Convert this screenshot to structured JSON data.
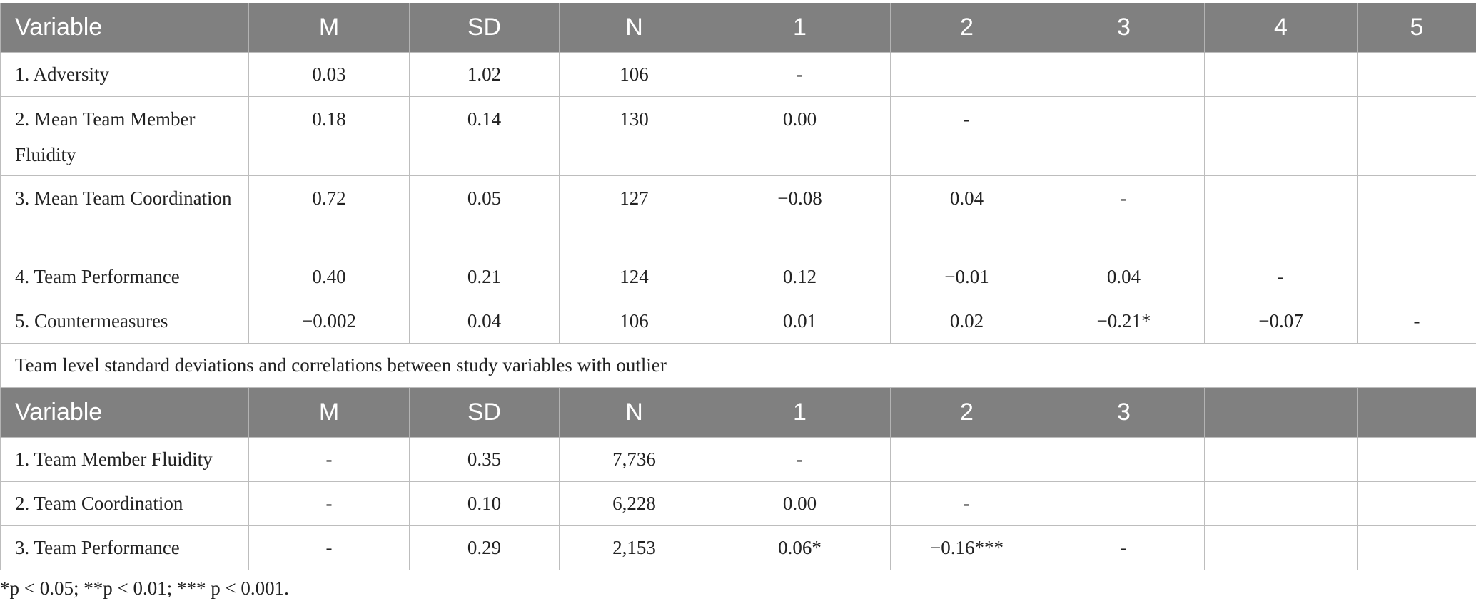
{
  "table1": {
    "header": [
      "Variable",
      "M",
      "SD",
      "N",
      "1",
      "2",
      "3",
      "4",
      "5"
    ],
    "rows": [
      [
        "1. Adversity",
        "0.03",
        "1.02",
        "106",
        "-",
        "",
        "",
        "",
        ""
      ],
      [
        "2. Mean Team Member Fluidity",
        "0.18",
        "0.14",
        "130",
        "0.00",
        "-",
        "",
        "",
        ""
      ],
      [
        "3. Mean Team Coordination",
        "0.72",
        "0.05",
        "127",
        "−0.08",
        "0.04",
        "-",
        "",
        ""
      ],
      [
        "4. Team Performance",
        "0.40",
        "0.21",
        "124",
        "0.12",
        "−0.01",
        "0.04",
        "-",
        ""
      ],
      [
        "5. Countermeasures",
        "−0.002",
        "0.04",
        "106",
        "0.01",
        "0.02",
        "−0.21*",
        "−0.07",
        "-"
      ]
    ]
  },
  "caption": "Team level standard deviations and correlations between study variables with outlier",
  "table2": {
    "header": [
      "Variable",
      "M",
      "SD",
      "N",
      "1",
      "2",
      "3",
      "",
      ""
    ],
    "rows": [
      [
        "1. Team Member Fluidity",
        "-",
        "0.35",
        "7,736",
        "-",
        "",
        "",
        "",
        ""
      ],
      [
        "2. Team Coordination",
        "-",
        "0.10",
        "6,228",
        "0.00",
        "-",
        "",
        "",
        ""
      ],
      [
        "3. Team Performance",
        "-",
        "0.29",
        "2,153",
        "0.06*",
        "−0.16***",
        "-",
        "",
        ""
      ]
    ]
  },
  "footnote": "*p < 0.05; **p < 0.01; *** p < 0.001."
}
